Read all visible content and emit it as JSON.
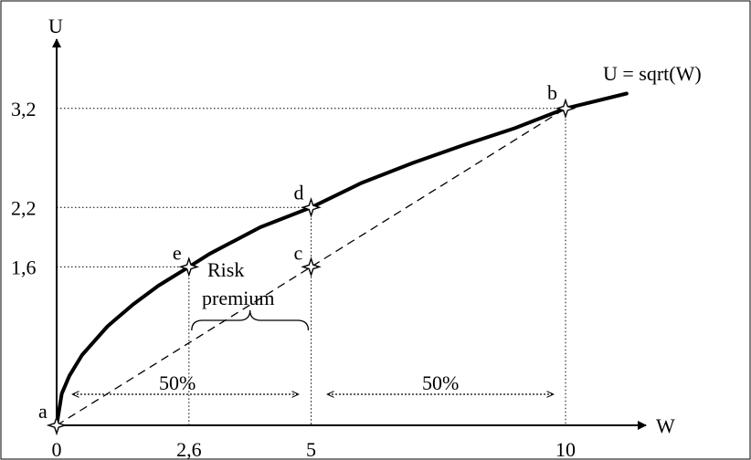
{
  "chart_data": {
    "type": "line",
    "title": "",
    "xlabel": "W",
    "ylabel": "U",
    "xlim": [
      0,
      11.3
    ],
    "ylim": [
      0,
      4.0
    ],
    "grid": false,
    "curve": {
      "label": "U = sqrt(W)",
      "x": [
        0,
        0.1,
        0.25,
        0.5,
        1,
        1.5,
        2,
        2.6,
        3,
        4,
        5,
        6,
        7,
        8,
        9,
        10,
        11.2
      ],
      "y": [
        0,
        0.32,
        0.5,
        0.71,
        1.0,
        1.22,
        1.41,
        1.6,
        1.73,
        2.0,
        2.2,
        2.45,
        2.65,
        2.83,
        3.0,
        3.2,
        3.35
      ]
    },
    "chord": {
      "from": [
        0,
        0
      ],
      "to": [
        10,
        3.2
      ],
      "style": "dashed"
    },
    "points": [
      {
        "label": "a",
        "x": 0,
        "y": 0
      },
      {
        "label": "e",
        "x": 2.6,
        "y": 1.6
      },
      {
        "label": "c",
        "x": 5,
        "y": 1.6
      },
      {
        "label": "d",
        "x": 5,
        "y": 2.2
      },
      {
        "label": "b",
        "x": 10,
        "y": 3.2
      }
    ],
    "x_ticks": [
      "0",
      "2,6",
      "5",
      "10"
    ],
    "x_tick_values": [
      0,
      2.6,
      5,
      10
    ],
    "y_ticks": [
      "1,6",
      "2,2",
      "3,2"
    ],
    "y_tick_values": [
      1.6,
      2.2,
      3.2
    ],
    "annotations": {
      "risk_premium_line1": "Risk",
      "risk_premium_line2": "premium",
      "left_pct": "50%",
      "right_pct": "50%"
    }
  }
}
